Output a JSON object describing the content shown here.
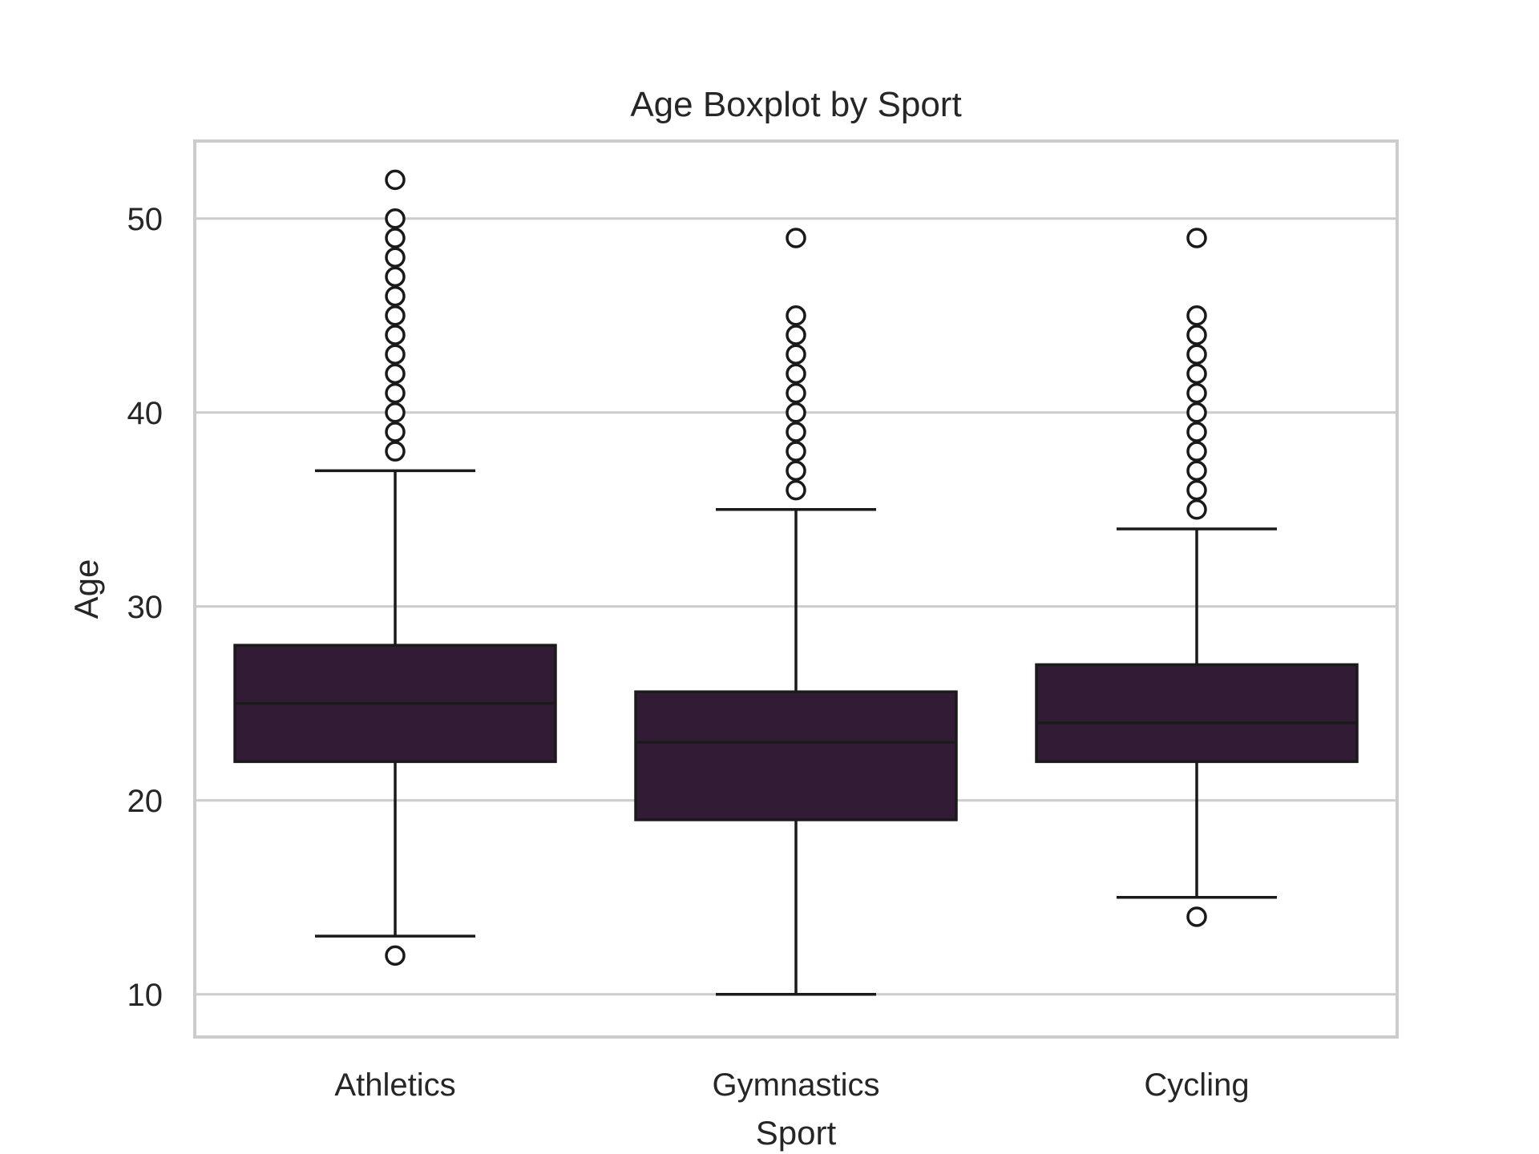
{
  "chart_data": {
    "type": "boxplot",
    "title": "Age Boxplot by Sport",
    "xlabel": "Sport",
    "ylabel": "Age",
    "ylim": [
      7.8,
      54
    ],
    "yticks": [
      10,
      20,
      30,
      40,
      50
    ],
    "grid": "horizontal",
    "colors": {
      "box_fill": "#321c35",
      "line": "#1a1a1a",
      "grid": "#cccccc",
      "frame": "#cccccc",
      "flier_fill": "#ffffff"
    },
    "categories": [
      "Athletics",
      "Gymnastics",
      "Cycling"
    ],
    "boxes": [
      {
        "category": "Athletics",
        "q1": 22,
        "median": 25,
        "q3": 28,
        "whisker_low": 13,
        "whisker_high": 37,
        "outliers": [
          12,
          38,
          39,
          40,
          41,
          42,
          43,
          44,
          45,
          46,
          47,
          48,
          49,
          50,
          52
        ]
      },
      {
        "category": "Gymnastics",
        "q1": 19,
        "median": 23,
        "q3": 25.6,
        "whisker_low": 10,
        "whisker_high": 35,
        "outliers": [
          36,
          37,
          38,
          39,
          40,
          41,
          42,
          43,
          44,
          45,
          49
        ]
      },
      {
        "category": "Cycling",
        "q1": 22,
        "median": 24,
        "q3": 27,
        "whisker_low": 15,
        "whisker_high": 34,
        "outliers": [
          14,
          35,
          36,
          37,
          38,
          39,
          40,
          41,
          42,
          43,
          44,
          45,
          49
        ]
      }
    ]
  }
}
